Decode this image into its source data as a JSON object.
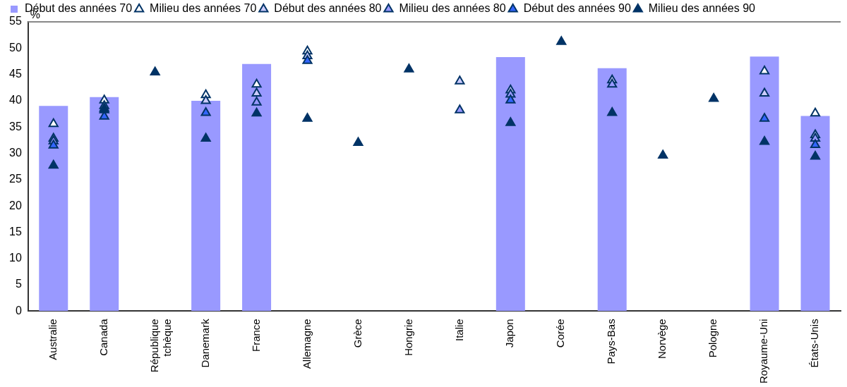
{
  "chart_data": {
    "type": "bar",
    "ylabel": "%",
    "legend": "top",
    "grid": false,
    "marker": "triangle",
    "categories": [
      "Australie",
      "Canada",
      "République tchèque",
      "Danemark",
      "France",
      "Allemagne",
      "Grèce",
      "Hongrie",
      "Italie",
      "Japon",
      "Corée",
      "Pays-Bas",
      "Norvège",
      "Pologne",
      "Royaume-Uni",
      "États-Unis"
    ],
    "ylim": [
      0,
      55
    ],
    "yticks": [
      0,
      5,
      10,
      15,
      20,
      25,
      30,
      35,
      40,
      45,
      50,
      55
    ],
    "series": [
      {
        "name": "Début des années 70",
        "color": "#9999ff",
        "values": [
          39.0,
          40.7,
          null,
          40.0,
          47.0,
          null,
          null,
          null,
          null,
          48.3,
          null,
          46.2,
          null,
          null,
          48.4,
          37.1
        ]
      },
      {
        "name": "Milieu des années 70",
        "type": "scatter",
        "color": "#ffffff",
        "values": [
          35.6,
          40.1,
          null,
          41.1,
          43.1,
          49.4,
          null,
          null,
          null,
          null,
          null,
          null,
          null,
          null,
          45.6,
          37.6
        ]
      },
      {
        "name": "Début des années 80",
        "type": "scatter",
        "color": "#ccccff",
        "values": [
          32.8,
          39.0,
          null,
          40.0,
          41.4,
          48.5,
          null,
          null,
          43.7,
          42.0,
          null,
          43.9,
          null,
          null,
          41.4,
          33.5
        ]
      },
      {
        "name": "Milieu des années 80",
        "type": "scatter",
        "color": "#9999ff",
        "values": [
          32.3,
          38.5,
          null,
          null,
          39.7,
          null,
          null,
          null,
          38.2,
          41.2,
          null,
          43.1,
          null,
          null,
          null,
          32.8
        ]
      },
      {
        "name": "Début des années 90",
        "type": "scatter",
        "color": "#3366ff",
        "values": [
          31.5,
          37.0,
          null,
          37.7,
          null,
          47.6,
          null,
          null,
          null,
          40.1,
          null,
          null,
          null,
          null,
          36.6,
          31.6
        ]
      },
      {
        "name": "Milieu des années 90",
        "type": "scatter",
        "color": "#003366",
        "values": [
          27.7,
          38.2,
          45.4,
          32.8,
          37.6,
          36.6,
          32.0,
          46.0,
          null,
          35.8,
          51.2,
          37.7,
          29.6,
          40.4,
          32.2,
          29.4
        ]
      }
    ]
  }
}
